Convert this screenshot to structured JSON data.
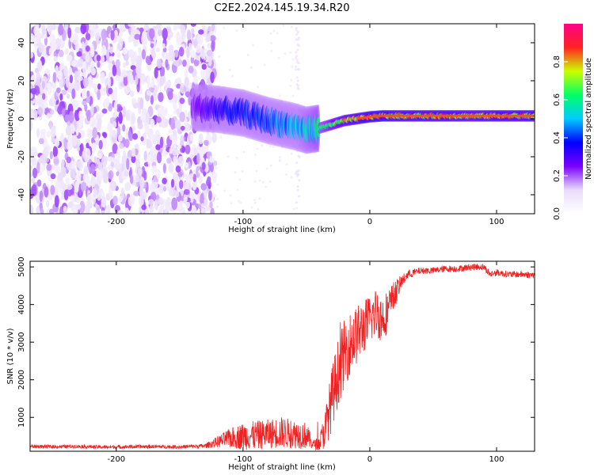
{
  "figure": {
    "title": "C2E2.2024.145.19.34.R20"
  },
  "chart_data": [
    {
      "type": "heatmap",
      "title": "C2E2.2024.145.19.34.R20",
      "xlabel": "Height of straight line (km)",
      "ylabel": "Frequency (Hz)",
      "xlim": [
        -268,
        130
      ],
      "ylim": [
        -50,
        50
      ],
      "x_ticks": [
        -200,
        -100,
        0,
        100
      ],
      "x_tick_labels": [
        "-200",
        "-100",
        "0",
        "100"
      ],
      "y_ticks": [
        -40,
        -20,
        0,
        20,
        40
      ],
      "y_tick_labels": [
        "-40",
        "-20",
        "0",
        "20",
        "40"
      ],
      "colorbar": {
        "label": "Normalized spectral amplitude",
        "range": [
          0,
          1
        ],
        "ticks": [
          0.0,
          0.2,
          0.4,
          0.6,
          0.8
        ],
        "tick_labels": [
          "0.0",
          "0.2",
          "0.4",
          "0.6",
          "0.8"
        ],
        "colormap": [
          "#ffffff",
          "#e9dcfb",
          "#7b00ff",
          "#0000ff",
          "#00ccff",
          "#00ff66",
          "#ccff00",
          "#ff2222",
          "#ff0088"
        ]
      },
      "ridge": {
        "x": [
          -140,
          -120,
          -100,
          -80,
          -60,
          -50,
          -40,
          -30,
          -20,
          -10,
          0,
          10,
          20,
          40,
          60,
          80,
          100,
          130
        ],
        "freq": [
          6,
          5,
          3,
          -1,
          -4,
          -6,
          -5,
          -3,
          -1,
          0,
          1,
          1.5,
          1.5,
          1.5,
          1.5,
          1.5,
          1.5,
          1.5
        ],
        "amplitude": [
          0.25,
          0.35,
          0.4,
          0.45,
          0.5,
          0.55,
          0.6,
          0.7,
          0.8,
          0.85,
          0.9,
          0.9,
          0.85,
          0.85,
          0.85,
          0.8,
          0.85,
          0.85
        ]
      },
      "noise_region_x": [
        -268,
        -130
      ]
    },
    {
      "type": "line",
      "xlabel": "Height of straight line (km)",
      "ylabel": "SNR (10 * v/v)",
      "xlim": [
        -268,
        130
      ],
      "ylim": [
        100,
        5150
      ],
      "x_ticks": [
        -200,
        -100,
        0,
        100
      ],
      "x_tick_labels": [
        "-200",
        "-100",
        "0",
        "100"
      ],
      "y_ticks": [
        1000,
        2000,
        3000,
        4000,
        5000
      ],
      "y_tick_labels": [
        "1000",
        "2000",
        "3000",
        "4000",
        "5000"
      ],
      "line_color": "#ee2222",
      "series": [
        {
          "x": [
            -268,
            -250,
            -230,
            -210,
            -190,
            -170,
            -150,
            -130,
            -120,
            -110,
            -100,
            -90,
            -80,
            -70,
            -60,
            -50,
            -45,
            -40,
            -35,
            -30,
            -25,
            -20,
            -15,
            -10,
            -5,
            0,
            5,
            10,
            15,
            20,
            25,
            30,
            40,
            50,
            60,
            70,
            80,
            90,
            95,
            100,
            110,
            120,
            130
          ],
          "values": [
            230,
            220,
            230,
            210,
            220,
            225,
            215,
            240,
            350,
            450,
            500,
            520,
            560,
            600,
            560,
            520,
            280,
            300,
            700,
            1500,
            2200,
            2700,
            3000,
            3200,
            3400,
            3600,
            3800,
            3600,
            3900,
            4300,
            4600,
            4800,
            4900,
            4900,
            4950,
            4950,
            5000,
            5000,
            4800,
            4850,
            4800,
            4800,
            4780
          ],
          "spread": [
            80,
            80,
            80,
            80,
            80,
            80,
            80,
            100,
            250,
            450,
            600,
            650,
            650,
            700,
            650,
            600,
            200,
            300,
            900,
            1400,
            1500,
            1500,
            1400,
            1300,
            1200,
            1100,
            1100,
            1100,
            900,
            600,
            300,
            200,
            150,
            150,
            150,
            150,
            150,
            150,
            150,
            150,
            150,
            150,
            150
          ]
        }
      ]
    }
  ]
}
